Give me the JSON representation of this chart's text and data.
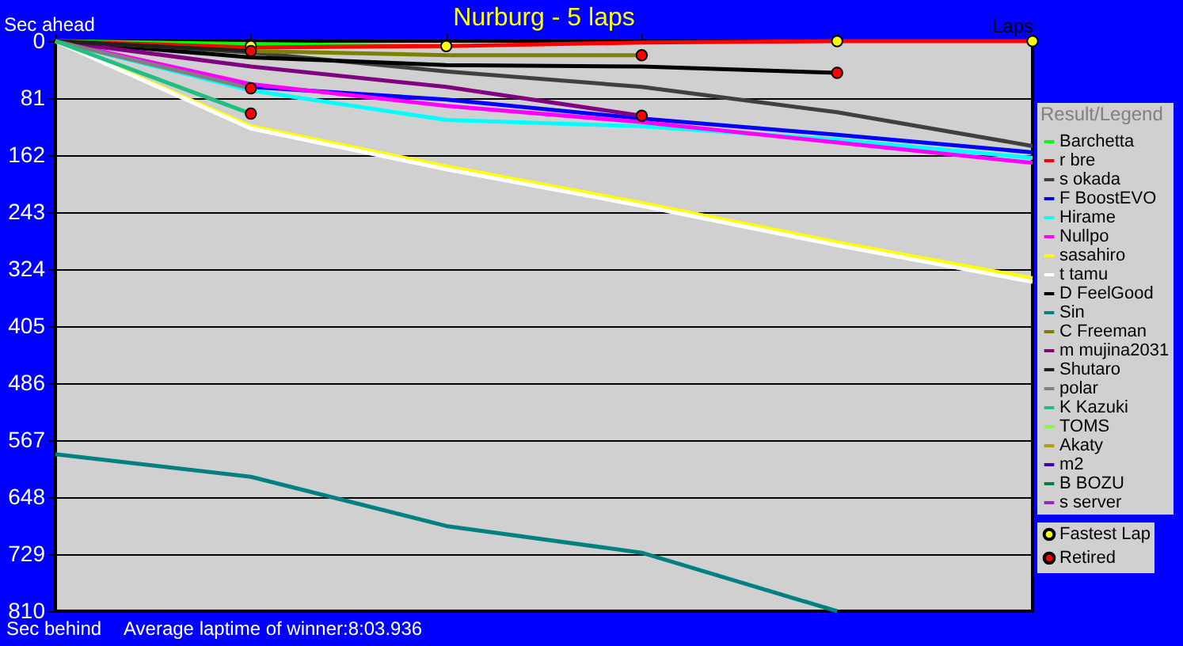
{
  "chart_data": {
    "type": "line",
    "title": "Nurburg - 5 laps",
    "xlabel": "Laps",
    "ylabel": "Sec ahead",
    "legend_title": "Result/Legend",
    "annotations": [
      "Sec behind",
      "Average laptime of winner:8:03.936"
    ],
    "categories": [
      null,
      null,
      null,
      null,
      null,
      null
    ],
    "ylim": [
      810,
      0
    ],
    "yticks": [
      0,
      81,
      162,
      243,
      324,
      405,
      486,
      567,
      648,
      729,
      810
    ],
    "grid": "y",
    "legend": "right",
    "tick_labels": "y",
    "line_style": "solid",
    "series": [
      {
        "name": "Barchetta",
        "color": "#00ff00",
        "values": [
          0,
          4,
          7,
          null,
          null,
          null
        ]
      },
      {
        "name": "r bre",
        "color": "#ff0000",
        "values": [
          0,
          9,
          7,
          2,
          0,
          0
        ]
      },
      {
        "name": "s okada",
        "color": "#404040",
        "values": [
          0,
          16,
          43,
          65,
          101,
          149
        ]
      },
      {
        "name": "F BoostEVO",
        "color": "#0000ff",
        "values": [
          0,
          65,
          83,
          110,
          133,
          158
        ]
      },
      {
        "name": "Hirame",
        "color": "#00ffff",
        "values": [
          0,
          70,
          112,
          121,
          140,
          166
        ]
      },
      {
        "name": "Nullpo",
        "color": "#ff00ff",
        "values": [
          0,
          61,
          92,
          115,
          144,
          173
        ]
      },
      {
        "name": "sasahiro",
        "color": "#ffff00",
        "values": [
          0,
          121,
          178,
          230,
          286,
          337
        ]
      },
      {
        "name": "t tamu",
        "color": "#ffffff",
        "values": [
          0,
          124,
          182,
          234,
          290,
          342
        ]
      },
      {
        "name": "D FeelGood",
        "color": "#000000",
        "values": [
          0,
          23,
          34,
          36,
          45,
          null
        ]
      },
      {
        "name": "Sin",
        "color": "#008080",
        "values": [
          587,
          619,
          689,
          727,
          810,
          null
        ]
      },
      {
        "name": "C Freeman",
        "color": "#808000",
        "values": [
          0,
          14,
          20,
          20,
          null,
          null
        ]
      },
      {
        "name": "m mujina2031",
        "color": "#800080",
        "values": [
          0,
          36,
          65,
          106,
          null,
          null
        ]
      },
      {
        "name": "Shutaro",
        "color": "#202020",
        "values": [
          0,
          14,
          null,
          null,
          null,
          null
        ]
      },
      {
        "name": "polar",
        "color": "#808080",
        "values": [
          0,
          67,
          null,
          null,
          null,
          null
        ]
      },
      {
        "name": "K Kazuki",
        "color": "#20c080",
        "values": [
          0,
          103,
          null,
          null,
          null,
          null
        ]
      },
      {
        "name": "TOMS",
        "color": "#80ff40",
        "values": [
          null,
          null,
          null,
          null,
          null,
          null
        ]
      },
      {
        "name": "Akaty",
        "color": "#b0a000",
        "values": [
          null,
          null,
          null,
          null,
          null,
          null
        ]
      },
      {
        "name": "m2",
        "color": "#4000c0",
        "values": [
          null,
          null,
          null,
          null,
          null,
          null
        ]
      },
      {
        "name": "B BOZU",
        "color": "#008040",
        "values": [
          null,
          null,
          null,
          null,
          null,
          null
        ]
      },
      {
        "name": "s server",
        "color": "#a020c0",
        "values": [
          null,
          null,
          null,
          null,
          null,
          null
        ]
      },
      {
        "name": "Fastest Lap",
        "type": "scatter",
        "marker": "circle",
        "color": "#ffff00",
        "values": [
          null,
          7,
          7,
          null,
          0,
          0
        ]
      },
      {
        "name": "Retired",
        "type": "scatter",
        "marker": "circle",
        "color": "#ff0000",
        "values": [
          null,
          14,
          null,
          20,
          45,
          null
        ]
      },
      {
        "type": "scatter",
        "marker": "circle",
        "color": "#ff0000",
        "values": [
          null,
          67,
          null,
          106,
          null,
          null
        ]
      },
      {
        "type": "scatter",
        "marker": "circle",
        "color": "#ff0000",
        "values": [
          null,
          103,
          null,
          null,
          null,
          null
        ]
      }
    ]
  }
}
